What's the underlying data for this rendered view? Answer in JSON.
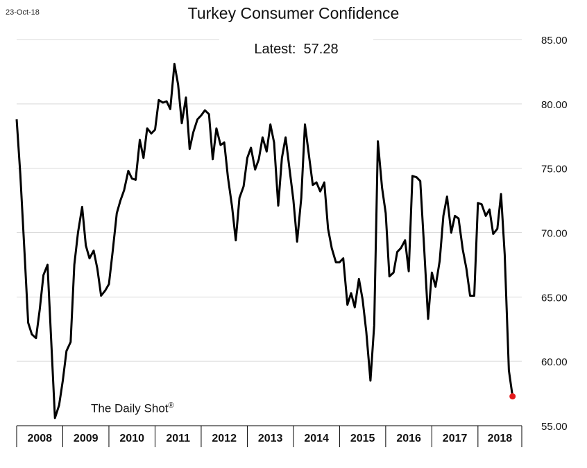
{
  "date": "23-Oct-18",
  "title": "Turkey Consumer Confidence",
  "latest_label": "Latest:",
  "latest_value": "57.28",
  "watermark": "The Daily Shot",
  "watermark_mark": "®",
  "colors": {
    "line": "#000000",
    "latest_point": "#e41a1c",
    "grid": "#d9d9d9"
  },
  "chart_data": {
    "type": "line",
    "title": "Turkey Consumer Confidence",
    "y_axis_position": "right",
    "grid": true,
    "ylim": [
      55,
      85
    ],
    "yticks": [
      "55.00",
      "60.00",
      "65.00",
      "70.00",
      "75.00",
      "80.00",
      "85.00"
    ],
    "ytick_values": [
      55,
      60,
      65,
      70,
      75,
      80,
      85
    ],
    "xlim": [
      2008.0,
      2018.95
    ],
    "xtick_labels": [
      "2008",
      "2009",
      "2010",
      "2011",
      "2012",
      "2013",
      "2014",
      "2015",
      "2016",
      "2017",
      "2018"
    ],
    "series": [
      {
        "values": [
          [
            2008.0,
            78.8
          ],
          [
            2008.08,
            74.5
          ],
          [
            2008.17,
            68.5
          ],
          [
            2008.25,
            63.0
          ],
          [
            2008.33,
            62.1
          ],
          [
            2008.42,
            61.8
          ],
          [
            2008.5,
            64.0
          ],
          [
            2008.58,
            66.7
          ],
          [
            2008.67,
            67.5
          ],
          [
            2008.75,
            61.5
          ],
          [
            2008.83,
            55.6
          ],
          [
            2008.92,
            56.6
          ],
          [
            2009.0,
            58.5
          ],
          [
            2009.08,
            60.8
          ],
          [
            2009.17,
            61.5
          ],
          [
            2009.25,
            67.5
          ],
          [
            2009.33,
            70.0
          ],
          [
            2009.42,
            72.0
          ],
          [
            2009.5,
            69.0
          ],
          [
            2009.58,
            68.0
          ],
          [
            2009.67,
            68.6
          ],
          [
            2009.75,
            67.2
          ],
          [
            2009.83,
            65.1
          ],
          [
            2009.92,
            65.5
          ],
          [
            2010.0,
            66.0
          ],
          [
            2010.08,
            68.5
          ],
          [
            2010.17,
            71.5
          ],
          [
            2010.25,
            72.5
          ],
          [
            2010.33,
            73.3
          ],
          [
            2010.42,
            74.8
          ],
          [
            2010.5,
            74.2
          ],
          [
            2010.58,
            74.1
          ],
          [
            2010.67,
            77.2
          ],
          [
            2010.75,
            75.8
          ],
          [
            2010.83,
            78.1
          ],
          [
            2010.92,
            77.7
          ],
          [
            2011.0,
            78.0
          ],
          [
            2011.08,
            80.3
          ],
          [
            2011.17,
            80.1
          ],
          [
            2011.25,
            80.2
          ],
          [
            2011.33,
            79.6
          ],
          [
            2011.42,
            83.1
          ],
          [
            2011.5,
            81.5
          ],
          [
            2011.58,
            78.5
          ],
          [
            2011.67,
            80.5
          ],
          [
            2011.75,
            76.5
          ],
          [
            2011.83,
            77.8
          ],
          [
            2011.92,
            78.8
          ],
          [
            2012.0,
            79.1
          ],
          [
            2012.08,
            79.5
          ],
          [
            2012.17,
            79.2
          ],
          [
            2012.25,
            75.7
          ],
          [
            2012.33,
            78.1
          ],
          [
            2012.42,
            76.8
          ],
          [
            2012.5,
            77.0
          ],
          [
            2012.58,
            74.3
          ],
          [
            2012.67,
            72.0
          ],
          [
            2012.75,
            69.4
          ],
          [
            2012.83,
            72.7
          ],
          [
            2012.92,
            73.6
          ],
          [
            2013.0,
            75.8
          ],
          [
            2013.08,
            76.6
          ],
          [
            2013.17,
            74.9
          ],
          [
            2013.25,
            75.7
          ],
          [
            2013.33,
            77.4
          ],
          [
            2013.42,
            76.3
          ],
          [
            2013.5,
            78.4
          ],
          [
            2013.58,
            77.0
          ],
          [
            2013.67,
            72.1
          ],
          [
            2013.75,
            75.8
          ],
          [
            2013.83,
            77.4
          ],
          [
            2013.92,
            74.8
          ],
          [
            2014.0,
            72.5
          ],
          [
            2014.08,
            69.3
          ],
          [
            2014.17,
            72.7
          ],
          [
            2014.25,
            78.4
          ],
          [
            2014.33,
            76.2
          ],
          [
            2014.42,
            73.7
          ],
          [
            2014.5,
            73.9
          ],
          [
            2014.58,
            73.2
          ],
          [
            2014.67,
            73.9
          ],
          [
            2014.75,
            70.3
          ],
          [
            2014.83,
            68.8
          ],
          [
            2014.92,
            67.7
          ],
          [
            2015.0,
            67.7
          ],
          [
            2015.08,
            68.0
          ],
          [
            2015.17,
            64.4
          ],
          [
            2015.25,
            65.3
          ],
          [
            2015.33,
            64.2
          ],
          [
            2015.42,
            66.4
          ],
          [
            2015.5,
            64.8
          ],
          [
            2015.58,
            62.3
          ],
          [
            2015.67,
            58.5
          ],
          [
            2015.75,
            62.8
          ],
          [
            2015.83,
            77.1
          ],
          [
            2015.92,
            73.5
          ],
          [
            2016.0,
            71.5
          ],
          [
            2016.08,
            66.6
          ],
          [
            2016.17,
            66.9
          ],
          [
            2016.25,
            68.5
          ],
          [
            2016.33,
            68.8
          ],
          [
            2016.42,
            69.4
          ],
          [
            2016.5,
            67.0
          ],
          [
            2016.58,
            74.4
          ],
          [
            2016.67,
            74.3
          ],
          [
            2016.75,
            74.0
          ],
          [
            2016.83,
            69.0
          ],
          [
            2016.92,
            63.3
          ],
          [
            2017.0,
            66.9
          ],
          [
            2017.08,
            65.8
          ],
          [
            2017.17,
            67.8
          ],
          [
            2017.25,
            71.3
          ],
          [
            2017.33,
            72.8
          ],
          [
            2017.42,
            70.0
          ],
          [
            2017.5,
            71.3
          ],
          [
            2017.58,
            71.1
          ],
          [
            2017.67,
            68.7
          ],
          [
            2017.75,
            67.2
          ],
          [
            2017.83,
            65.1
          ],
          [
            2017.92,
            65.1
          ],
          [
            2018.0,
            72.3
          ],
          [
            2018.08,
            72.2
          ],
          [
            2018.17,
            71.3
          ],
          [
            2018.25,
            71.8
          ],
          [
            2018.33,
            69.9
          ],
          [
            2018.42,
            70.3
          ],
          [
            2018.5,
            73.0
          ],
          [
            2018.58,
            68.3
          ],
          [
            2018.67,
            59.3
          ],
          [
            2018.75,
            57.28
          ]
        ]
      }
    ]
  }
}
